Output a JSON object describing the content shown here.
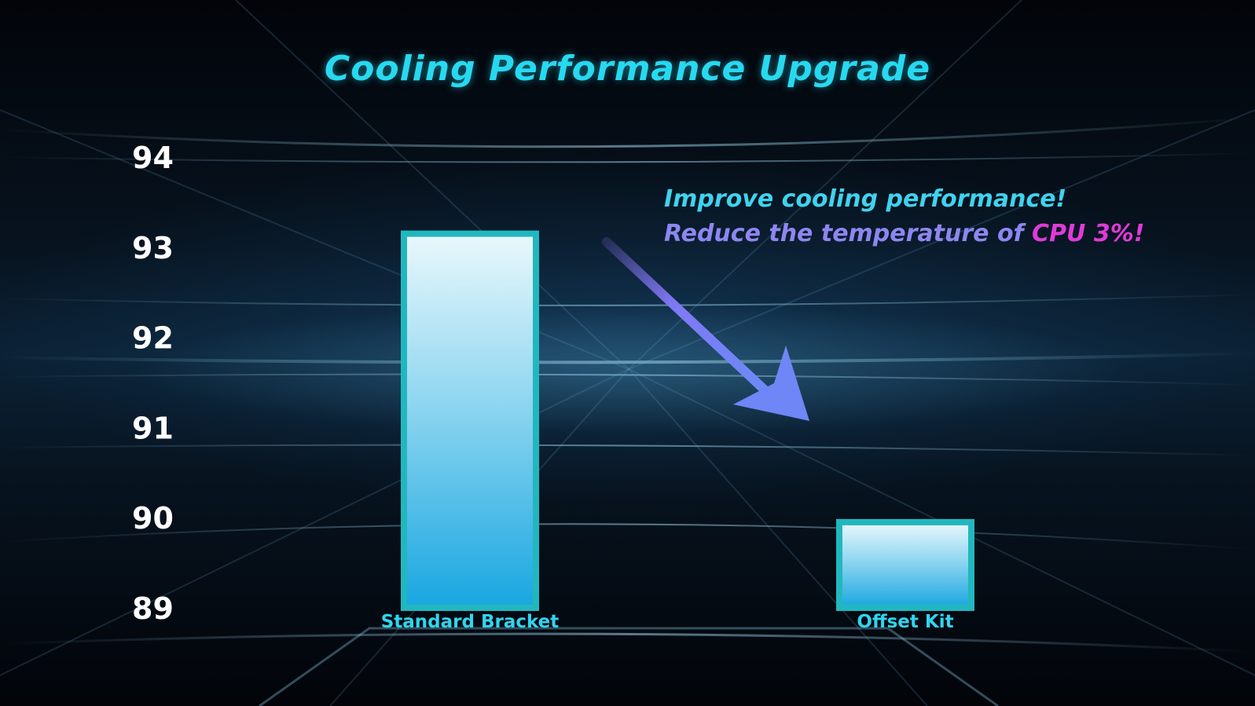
{
  "chart_data": {
    "type": "bar",
    "title": "Cooling Performance Upgrade",
    "categories": [
      "Standard Bracket",
      "Offset Kit"
    ],
    "values": [
      93.15,
      89.95
    ],
    "ylim": [
      89,
      94
    ],
    "yticks": [
      "89",
      "90",
      "91",
      "92",
      "93",
      "94"
    ],
    "xlabel": "",
    "ylabel": "",
    "grid": false,
    "bar_colors": {
      "top": "#eaf8fc",
      "bottom": "#18a6e0",
      "border": "#21b7bf"
    },
    "annotation": {
      "line1": "Improve cooling performance!",
      "line2_prefix": "Reduce the temperature of ",
      "line2_highlight": "CPU 3%!"
    }
  },
  "colors": {
    "title": "#27d9f0",
    "annotation_line1": "#3fd3ee",
    "annotation_line2": "#8d86f0",
    "annotation_highlight": "#e03ad8",
    "arrow": "#7a7af4"
  }
}
